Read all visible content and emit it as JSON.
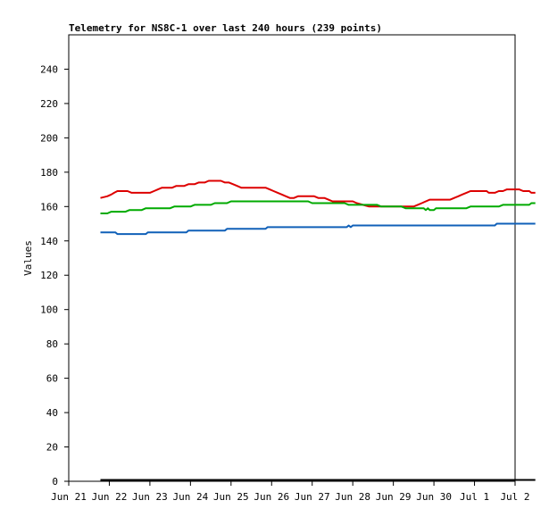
{
  "chart_data": {
    "type": "line",
    "title": "Telemetry for NS8C-1 over last 240 hours (239 points)",
    "xlabel": "",
    "ylabel": "Values",
    "ylim": [
      0,
      260
    ],
    "y_ticks": [
      0,
      20,
      40,
      60,
      80,
      100,
      120,
      140,
      160,
      180,
      200,
      220,
      240
    ],
    "x_tick_labels": [
      "Jun 21",
      "Jun 22",
      "Jun 23",
      "Jun 24",
      "Jun 25",
      "Jun 26",
      "Jun 27",
      "Jun 28",
      "Jun 29",
      "Jun 30",
      "Jul 1",
      "Jul 2"
    ],
    "grid": false,
    "legend": "none",
    "series": [
      {
        "color": "#dd0000",
        "points": [
          [
            0.78,
            165
          ],
          [
            0.95,
            166
          ],
          [
            1.05,
            167
          ],
          [
            1.12,
            168
          ],
          [
            1.2,
            169
          ],
          [
            1.45,
            169
          ],
          [
            1.55,
            168
          ],
          [
            2.0,
            168
          ],
          [
            2.1,
            169
          ],
          [
            2.2,
            170
          ],
          [
            2.3,
            171
          ],
          [
            2.55,
            171
          ],
          [
            2.65,
            172
          ],
          [
            2.85,
            172
          ],
          [
            2.95,
            173
          ],
          [
            3.1,
            173
          ],
          [
            3.2,
            174
          ],
          [
            3.35,
            174
          ],
          [
            3.45,
            175
          ],
          [
            3.75,
            175
          ],
          [
            3.85,
            174
          ],
          [
            3.95,
            174
          ],
          [
            4.05,
            173
          ],
          [
            4.15,
            172
          ],
          [
            4.25,
            171
          ],
          [
            4.85,
            171
          ],
          [
            4.95,
            170
          ],
          [
            5.05,
            169
          ],
          [
            5.15,
            168
          ],
          [
            5.25,
            167
          ],
          [
            5.35,
            166
          ],
          [
            5.45,
            165
          ],
          [
            5.55,
            165
          ],
          [
            5.65,
            166
          ],
          [
            6.05,
            166
          ],
          [
            6.15,
            165
          ],
          [
            6.3,
            165
          ],
          [
            6.4,
            164
          ],
          [
            6.5,
            163
          ],
          [
            7.0,
            163
          ],
          [
            7.1,
            162
          ],
          [
            7.25,
            161
          ],
          [
            7.4,
            160
          ],
          [
            8.4,
            160
          ],
          [
            8.5,
            160
          ],
          [
            8.6,
            161
          ],
          [
            8.7,
            162
          ],
          [
            8.8,
            163
          ],
          [
            8.9,
            164
          ],
          [
            9.4,
            164
          ],
          [
            9.5,
            165
          ],
          [
            9.6,
            166
          ],
          [
            9.7,
            167
          ],
          [
            9.8,
            168
          ],
          [
            9.9,
            169
          ],
          [
            10.3,
            169
          ],
          [
            10.35,
            168
          ],
          [
            10.5,
            168
          ],
          [
            10.6,
            169
          ],
          [
            10.7,
            169
          ],
          [
            10.8,
            170
          ],
          [
            11.1,
            170
          ],
          [
            11.2,
            169
          ],
          [
            11.35,
            169
          ],
          [
            11.4,
            168
          ],
          [
            11.5,
            168
          ]
        ]
      },
      {
        "color": "#00aa00",
        "points": [
          [
            0.78,
            156
          ],
          [
            0.95,
            156
          ],
          [
            1.05,
            157
          ],
          [
            1.4,
            157
          ],
          [
            1.5,
            158
          ],
          [
            1.8,
            158
          ],
          [
            1.9,
            159
          ],
          [
            2.5,
            159
          ],
          [
            2.6,
            160
          ],
          [
            3.0,
            160
          ],
          [
            3.1,
            161
          ],
          [
            3.5,
            161
          ],
          [
            3.6,
            162
          ],
          [
            3.9,
            162
          ],
          [
            4.0,
            163
          ],
          [
            5.9,
            163
          ],
          [
            6.0,
            162
          ],
          [
            6.8,
            162
          ],
          [
            6.9,
            161
          ],
          [
            7.6,
            161
          ],
          [
            7.7,
            160
          ],
          [
            8.2,
            160
          ],
          [
            8.3,
            159
          ],
          [
            8.75,
            159
          ],
          [
            8.8,
            158
          ],
          [
            8.85,
            159
          ],
          [
            8.9,
            158
          ],
          [
            9.0,
            158
          ],
          [
            9.05,
            159
          ],
          [
            9.8,
            159
          ],
          [
            9.9,
            160
          ],
          [
            10.6,
            160
          ],
          [
            10.7,
            161
          ],
          [
            11.35,
            161
          ],
          [
            11.4,
            162
          ],
          [
            11.5,
            162
          ]
        ]
      },
      {
        "color": "#1060b8",
        "points": [
          [
            0.78,
            145
          ],
          [
            1.15,
            145
          ],
          [
            1.2,
            144
          ],
          [
            1.9,
            144
          ],
          [
            1.95,
            145
          ],
          [
            2.9,
            145
          ],
          [
            2.95,
            146
          ],
          [
            3.85,
            146
          ],
          [
            3.9,
            147
          ],
          [
            4.85,
            147
          ],
          [
            4.9,
            148
          ],
          [
            6.85,
            148
          ],
          [
            6.9,
            149
          ],
          [
            6.95,
            148
          ],
          [
            7.0,
            149
          ],
          [
            10.5,
            149
          ],
          [
            10.55,
            150
          ],
          [
            11.5,
            150
          ]
        ]
      },
      {
        "color": "#000000",
        "points": [
          [
            0.78,
            0.8
          ],
          [
            11.5,
            0.8
          ]
        ]
      }
    ]
  }
}
